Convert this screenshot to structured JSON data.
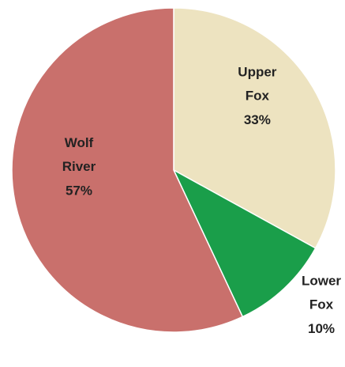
{
  "chart_data": {
    "type": "pie",
    "categories": [
      "Upper Fox",
      "Lower Fox",
      "Wolf River"
    ],
    "values": [
      33,
      10,
      57
    ],
    "value_labels": [
      "33%",
      "10%",
      "57%"
    ],
    "colors": [
      "#ede3c0",
      "#1a9e4a",
      "#c9706c"
    ]
  }
}
